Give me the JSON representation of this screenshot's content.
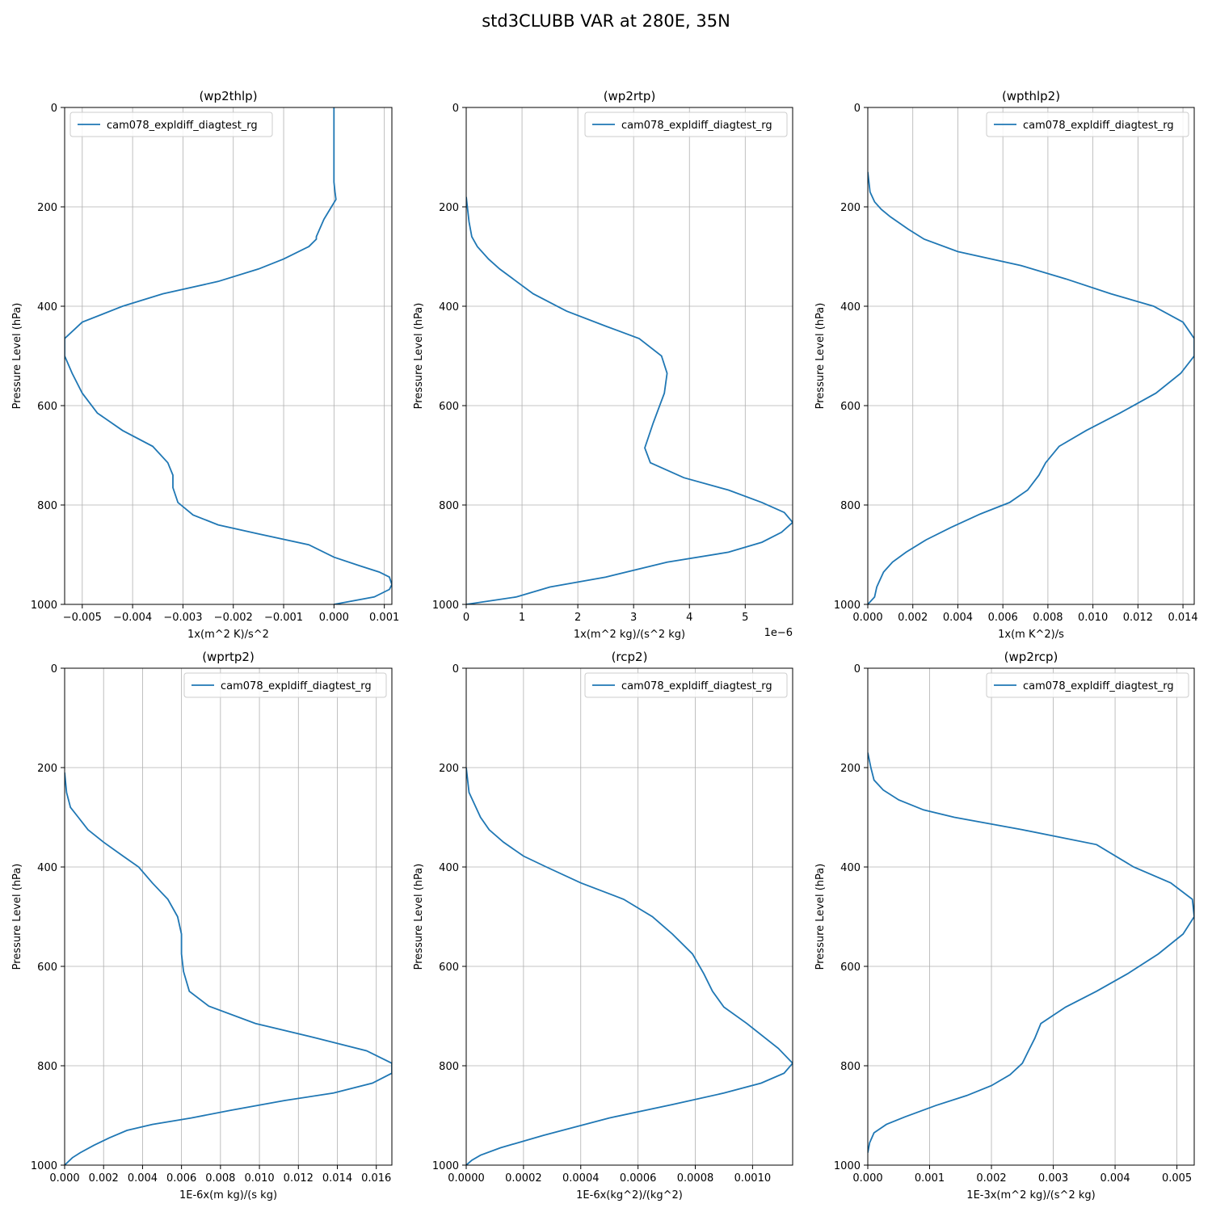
{
  "figure": {
    "title": "std3CLUBB VAR at 280E, 35N"
  },
  "style": {
    "line_color": "#1f77b4",
    "grid_color": "#b0b0b0"
  },
  "chart_data": [
    {
      "type": "line",
      "title": "(wp2thlp)",
      "xlabel": "1x(m^2 K)/s^2",
      "ylabel": "Pressure Level (hPa)",
      "xlim": [
        -0.00535,
        0.00115
      ],
      "ylim": [
        1000,
        0
      ],
      "xticks": [
        -0.005,
        -0.004,
        -0.003,
        -0.002,
        -0.001,
        0.0,
        0.001
      ],
      "xtick_labels": [
        "−0.005",
        "−0.004",
        "−0.003",
        "−0.002",
        "−0.001",
        "0.000",
        "0.001"
      ],
      "yticks": [
        0,
        200,
        400,
        600,
        800,
        1000
      ],
      "ytick_labels": [
        "0",
        "200",
        "400",
        "600",
        "800",
        "1000"
      ],
      "offset_label": "",
      "legend": "top-left",
      "grid": true,
      "series": [
        {
          "name": "cam078_expldiff_diagtest_rg",
          "x": [
            0.0,
            0.0,
            0.0,
            2e-05,
            4e-05,
            -5e-05,
            -0.0002,
            -0.00035,
            -0.00035,
            -0.0005,
            -0.001,
            -0.0015,
            -0.0023,
            -0.0034,
            -0.0042,
            -0.005,
            -0.00535,
            -0.00535,
            -0.0052,
            -0.005,
            -0.0047,
            -0.0042,
            -0.0036,
            -0.0033,
            -0.0032,
            -0.0032,
            -0.0031,
            -0.0028,
            -0.0023,
            -0.0015,
            -0.0005,
            0.0,
            0.0005,
            0.0009,
            0.0011,
            0.00115,
            0.0011,
            0.0008,
            0.0
          ],
          "y": [
            0,
            100,
            150,
            170,
            185,
            200,
            225,
            260,
            265,
            280,
            305,
            325,
            350,
            375,
            400,
            432,
            465,
            500,
            535,
            575,
            615,
            650,
            682,
            715,
            740,
            765,
            795,
            820,
            840,
            858,
            880,
            905,
            922,
            935,
            945,
            960,
            970,
            985,
            1000
          ]
        }
      ]
    },
    {
      "type": "line",
      "title": "(wp2rtp)",
      "xlabel": "1x(m^2 kg)/(s^2 kg)",
      "ylabel": "Pressure Level (hPa)",
      "xlim": [
        0.0,
        5.85
      ],
      "ylim": [
        1000,
        0
      ],
      "xticks": [
        0,
        1,
        2,
        3,
        4,
        5
      ],
      "xtick_labels": [
        "0",
        "1",
        "2",
        "3",
        "4",
        "5"
      ],
      "yticks": [
        0,
        200,
        400,
        600,
        800,
        1000
      ],
      "ytick_labels": [
        "0",
        "200",
        "400",
        "600",
        "800",
        "1000"
      ],
      "offset_label": "1e−6",
      "legend": "top-right",
      "grid": true,
      "series": [
        {
          "name": "cam078_expldiff_diagtest_rg",
          "x": [
            0.0,
            0.02,
            0.05,
            0.1,
            0.2,
            0.4,
            0.6,
            0.9,
            1.2,
            1.8,
            2.5,
            3.1,
            3.5,
            3.6,
            3.55,
            3.35,
            3.2,
            3.3,
            3.9,
            4.7,
            5.3,
            5.7,
            5.85,
            5.65,
            5.3,
            4.7,
            3.6,
            2.5,
            1.5,
            0.9,
            0.0
          ],
          "y": [
            180,
            200,
            230,
            260,
            280,
            305,
            325,
            350,
            375,
            410,
            440,
            465,
            500,
            535,
            575,
            635,
            685,
            715,
            745,
            770,
            795,
            815,
            835,
            855,
            875,
            895,
            915,
            945,
            965,
            985,
            1000
          ]
        }
      ]
    },
    {
      "type": "line",
      "title": "(wpthlp2)",
      "xlabel": "1x(m K^2)/s",
      "ylabel": "Pressure Level (hPa)",
      "xlim": [
        0.0,
        0.0145
      ],
      "ylim": [
        1000,
        0
      ],
      "xticks": [
        0.0,
        0.002,
        0.004,
        0.006,
        0.008,
        0.01,
        0.012,
        0.014
      ],
      "xtick_labels": [
        "0.000",
        "0.002",
        "0.004",
        "0.006",
        "0.008",
        "0.010",
        "0.012",
        "0.014"
      ],
      "yticks": [
        0,
        200,
        400,
        600,
        800,
        1000
      ],
      "ytick_labels": [
        "0",
        "200",
        "400",
        "600",
        "800",
        "1000"
      ],
      "offset_label": "",
      "legend": "top-right",
      "grid": true,
      "series": [
        {
          "name": "cam078_expldiff_diagtest_rg",
          "x": [
            0.0,
            0.0001,
            0.0003,
            0.0006,
            0.001,
            0.0018,
            0.0025,
            0.004,
            0.0055,
            0.0068,
            0.0088,
            0.0108,
            0.0127,
            0.014,
            0.0145,
            0.0145,
            0.0139,
            0.0128,
            0.0112,
            0.0097,
            0.0085,
            0.0079,
            0.0076,
            0.0071,
            0.0063,
            0.005,
            0.0037,
            0.0026,
            0.0017,
            0.0011,
            0.0007,
            0.0005,
            0.0004,
            0.0003,
            0.0
          ],
          "y": [
            130,
            170,
            190,
            205,
            220,
            245,
            265,
            290,
            305,
            318,
            345,
            375,
            400,
            432,
            465,
            500,
            535,
            575,
            615,
            650,
            682,
            715,
            740,
            770,
            795,
            818,
            845,
            870,
            895,
            915,
            935,
            955,
            965,
            985,
            1000
          ]
        }
      ]
    },
    {
      "type": "line",
      "title": "(wprtp2)",
      "xlabel": "1E-6x(m kg)/(s kg)",
      "ylabel": "Pressure Level (hPa)",
      "xlim": [
        0.0,
        0.0168
      ],
      "ylim": [
        1000,
        0
      ],
      "xticks": [
        0.0,
        0.002,
        0.004,
        0.006,
        0.008,
        0.01,
        0.012,
        0.014,
        0.016
      ],
      "xtick_labels": [
        "0.000",
        "0.002",
        "0.004",
        "0.006",
        "0.008",
        "0.010",
        "0.012",
        "0.014",
        "0.016"
      ],
      "yticks": [
        0,
        200,
        400,
        600,
        800,
        1000
      ],
      "ytick_labels": [
        "0",
        "200",
        "400",
        "600",
        "800",
        "1000"
      ],
      "offset_label": "",
      "legend": "top-right",
      "grid": true,
      "series": [
        {
          "name": "cam078_expldiff_diagtest_rg",
          "x": [
            0.0,
            0.0001,
            0.0003,
            0.0007,
            0.0012,
            0.002,
            0.003,
            0.0038,
            0.0045,
            0.0053,
            0.0058,
            0.006,
            0.006,
            0.0061,
            0.0064,
            0.0074,
            0.0098,
            0.013,
            0.0155,
            0.0168,
            0.0168,
            0.0158,
            0.0138,
            0.0113,
            0.0085,
            0.0065,
            0.0045,
            0.0032,
            0.0023,
            0.0015,
            0.0008,
            0.0004,
            0.0
          ],
          "y": [
            210,
            250,
            280,
            300,
            325,
            350,
            378,
            400,
            432,
            465,
            500,
            535,
            575,
            610,
            650,
            680,
            715,
            745,
            770,
            795,
            815,
            835,
            855,
            870,
            890,
            905,
            918,
            930,
            945,
            960,
            975,
            985,
            1000
          ]
        }
      ]
    },
    {
      "type": "line",
      "title": "(rcp2)",
      "xlabel": "1E-6x(kg^2)/(kg^2)",
      "ylabel": "Pressure Level (hPa)",
      "xlim": [
        0.0,
        0.00114
      ],
      "ylim": [
        1000,
        0
      ],
      "xticks": [
        0.0,
        0.0002,
        0.0004,
        0.0006,
        0.0008,
        0.001
      ],
      "xtick_labels": [
        "0.0000",
        "0.0002",
        "0.0004",
        "0.0006",
        "0.0008",
        "0.0010"
      ],
      "yticks": [
        0,
        200,
        400,
        600,
        800,
        1000
      ],
      "ytick_labels": [
        "0",
        "200",
        "400",
        "600",
        "800",
        "1000"
      ],
      "offset_label": "",
      "legend": "top-right",
      "grid": true,
      "series": [
        {
          "name": "cam078_expldiff_diagtest_rg",
          "x": [
            0.0,
            1e-05,
            3e-05,
            5e-05,
            8e-05,
            0.00013,
            0.0002,
            0.00028,
            0.0004,
            0.00055,
            0.00065,
            0.00072,
            0.00079,
            0.00083,
            0.00086,
            0.0009,
            0.00098,
            0.00109,
            0.00114,
            0.00111,
            0.00103,
            0.0009,
            0.00072,
            0.0005,
            0.00027,
            0.00012,
            5e-05,
            2e-05,
            0.0
          ],
          "y": [
            200,
            250,
            275,
            300,
            325,
            350,
            378,
            400,
            432,
            465,
            500,
            535,
            575,
            615,
            650,
            682,
            715,
            765,
            795,
            815,
            835,
            855,
            878,
            905,
            940,
            965,
            980,
            990,
            1000
          ]
        }
      ]
    },
    {
      "type": "line",
      "title": "(wp2rcp)",
      "xlabel": "1E-3x(m^2 kg)/(s^2 kg)",
      "ylabel": "Pressure Level (hPa)",
      "xlim": [
        0.0,
        0.00528
      ],
      "ylim": [
        1000,
        0
      ],
      "xticks": [
        0.0,
        0.001,
        0.002,
        0.003,
        0.004,
        0.005
      ],
      "xtick_labels": [
        "0.000",
        "0.001",
        "0.002",
        "0.003",
        "0.004",
        "0.005"
      ],
      "yticks": [
        0,
        200,
        400,
        600,
        800,
        1000
      ],
      "ytick_labels": [
        "0",
        "200",
        "400",
        "600",
        "800",
        "1000"
      ],
      "offset_label": "",
      "legend": "top-right",
      "grid": true,
      "series": [
        {
          "name": "cam078_expldiff_diagtest_rg",
          "x": [
            0.0,
            5e-05,
            0.0001,
            0.00025,
            0.0005,
            0.0009,
            0.0014,
            0.0025,
            0.0037,
            0.0043,
            0.0049,
            0.00525,
            0.00528,
            0.0051,
            0.0047,
            0.0042,
            0.0037,
            0.0032,
            0.0028,
            0.0027,
            0.0026,
            0.0025,
            0.0023,
            0.002,
            0.0016,
            0.0011,
            0.0006,
            0.0003,
            0.0001,
            3e-05,
            0.0
          ],
          "y": [
            170,
            200,
            225,
            245,
            265,
            285,
            300,
            325,
            355,
            400,
            432,
            465,
            500,
            535,
            575,
            615,
            650,
            682,
            715,
            745,
            770,
            795,
            818,
            840,
            860,
            880,
            903,
            918,
            935,
            955,
            975
          ]
        }
      ]
    }
  ]
}
